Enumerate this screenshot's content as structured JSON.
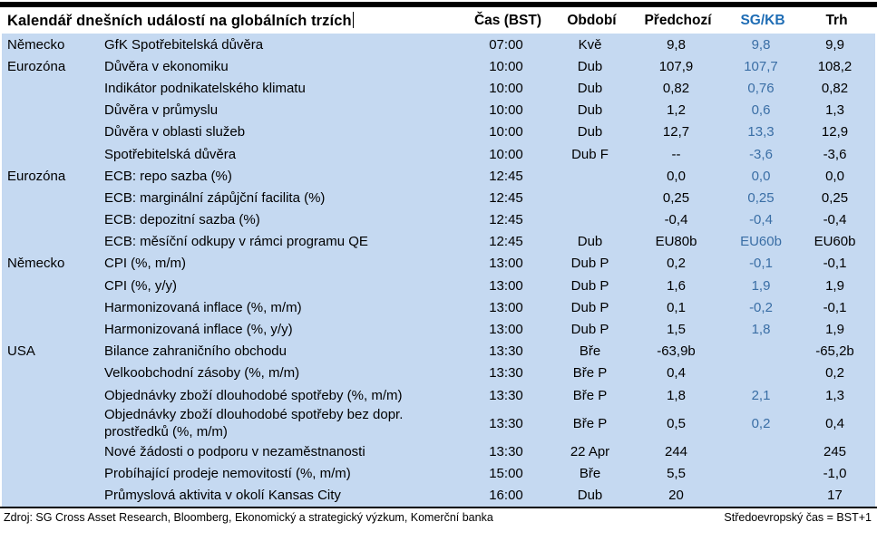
{
  "title": "Kalendář dnešních událostí na globálních trzích",
  "columns": {
    "time": "Čas (BST)",
    "period": "Období",
    "previous": "Předchozí",
    "sgkb": "SG/KB",
    "market": "Trh"
  },
  "colors": {
    "row_bg": "#c5d9f1",
    "sgkb_header": "#1f6db5",
    "sgkb_value": "#3a6ea5",
    "text": "#000000"
  },
  "rows": [
    {
      "region": "Německo",
      "event": "GfK Spotřebitelská důvěra",
      "time": "07:00",
      "period": "Kvě",
      "previous": "9,8",
      "sgkb": "9,8",
      "market": "9,9"
    },
    {
      "region": "Eurozóna",
      "event": "Důvěra v ekonomiku",
      "time": "10:00",
      "period": "Dub",
      "previous": "107,9",
      "sgkb": "107,7",
      "market": "108,2"
    },
    {
      "region": "",
      "event": "Indikátor podnikatelského klimatu",
      "time": "10:00",
      "period": "Dub",
      "previous": "0,82",
      "sgkb": "0,76",
      "market": "0,82"
    },
    {
      "region": "",
      "event": "Důvěra v průmyslu",
      "time": "10:00",
      "period": "Dub",
      "previous": "1,2",
      "sgkb": "0,6",
      "market": "1,3"
    },
    {
      "region": "",
      "event": "Důvěra v oblasti služeb",
      "time": "10:00",
      "period": "Dub",
      "previous": "12,7",
      "sgkb": "13,3",
      "market": "12,9"
    },
    {
      "region": "",
      "event": "Spotřebitelská důvěra",
      "time": "10:00",
      "period": "Dub F",
      "previous": "--",
      "sgkb": "-3,6",
      "market": "-3,6"
    },
    {
      "region": "Eurozóna",
      "event": "ECB: repo sazba (%)",
      "time": "12:45",
      "period": "",
      "previous": "0,0",
      "sgkb": "0,0",
      "market": "0,0"
    },
    {
      "region": "",
      "event": "ECB: marginální zápůjční facilita (%)",
      "time": "12:45",
      "period": "",
      "previous": "0,25",
      "sgkb": "0,25",
      "market": "0,25"
    },
    {
      "region": "",
      "event": "ECB: depozitní sazba (%)",
      "time": "12:45",
      "period": "",
      "previous": "-0,4",
      "sgkb": "-0,4",
      "market": "-0,4"
    },
    {
      "region": "",
      "event": "ECB: měsíční odkupy v rámci programu QE",
      "time": "12:45",
      "period": "Dub",
      "previous": "EU80b",
      "sgkb": "EU60b",
      "market": "EU60b"
    },
    {
      "region": "Německo",
      "event": "CPI (%, m/m)",
      "time": "13:00",
      "period": "Dub P",
      "previous": "0,2",
      "sgkb": "-0,1",
      "market": "-0,1"
    },
    {
      "region": "",
      "event": "CPI (%, y/y)",
      "time": "13:00",
      "period": "Dub P",
      "previous": "1,6",
      "sgkb": "1,9",
      "market": "1,9"
    },
    {
      "region": "",
      "event": "Harmonizovaná inflace (%, m/m)",
      "time": "13:00",
      "period": "Dub P",
      "previous": "0,1",
      "sgkb": "-0,2",
      "market": "-0,1"
    },
    {
      "region": "",
      "event": "Harmonizovaná inflace (%, y/y)",
      "time": "13:00",
      "period": "Dub P",
      "previous": "1,5",
      "sgkb": "1,8",
      "market": "1,9"
    },
    {
      "region": "USA",
      "event": "Bilance zahraničního obchodu",
      "time": "13:30",
      "period": "Bře",
      "previous": "-63,9b",
      "sgkb": "",
      "market": "-65,2b"
    },
    {
      "region": "",
      "event": "Velkoobchodní zásoby (%, m/m)",
      "time": "13:30",
      "period": "Bře P",
      "previous": "0,4",
      "sgkb": "",
      "market": "0,2"
    },
    {
      "region": "",
      "event": "Objednávky zboží dlouhodobé spotřeby (%, m/m)",
      "time": "13:30",
      "period": "Bře P",
      "previous": "1,8",
      "sgkb": "2,1",
      "market": "1,3"
    },
    {
      "region": "",
      "event": "Objednávky zboží dlouhodobé spotřeby bez dopr. prostředků (%, m/m)",
      "time": "13:30",
      "period": "Bře P",
      "previous": "0,5",
      "sgkb": "0,2",
      "market": "0,4"
    },
    {
      "region": "",
      "event": "Nové žádosti o podporu v nezaměstnanosti",
      "time": "13:30",
      "period": "22 Apr",
      "previous": "244",
      "sgkb": "",
      "market": "245"
    },
    {
      "region": "",
      "event": "Probíhající prodeje nemovitostí (%, m/m)",
      "time": "15:00",
      "period": "Bře",
      "previous": "5,5",
      "sgkb": "",
      "market": "-1,0"
    },
    {
      "region": "",
      "event": "Průmyslová aktivita v okolí Kansas City",
      "time": "16:00",
      "period": "Dub",
      "previous": "20",
      "sgkb": "",
      "market": "17"
    }
  ],
  "footer": {
    "source": "Zdroj: SG Cross Asset Research, Bloomberg, Ekonomický a strategický výzkum, Komerční banka",
    "note": "Středoevropský čas = BST+1"
  }
}
